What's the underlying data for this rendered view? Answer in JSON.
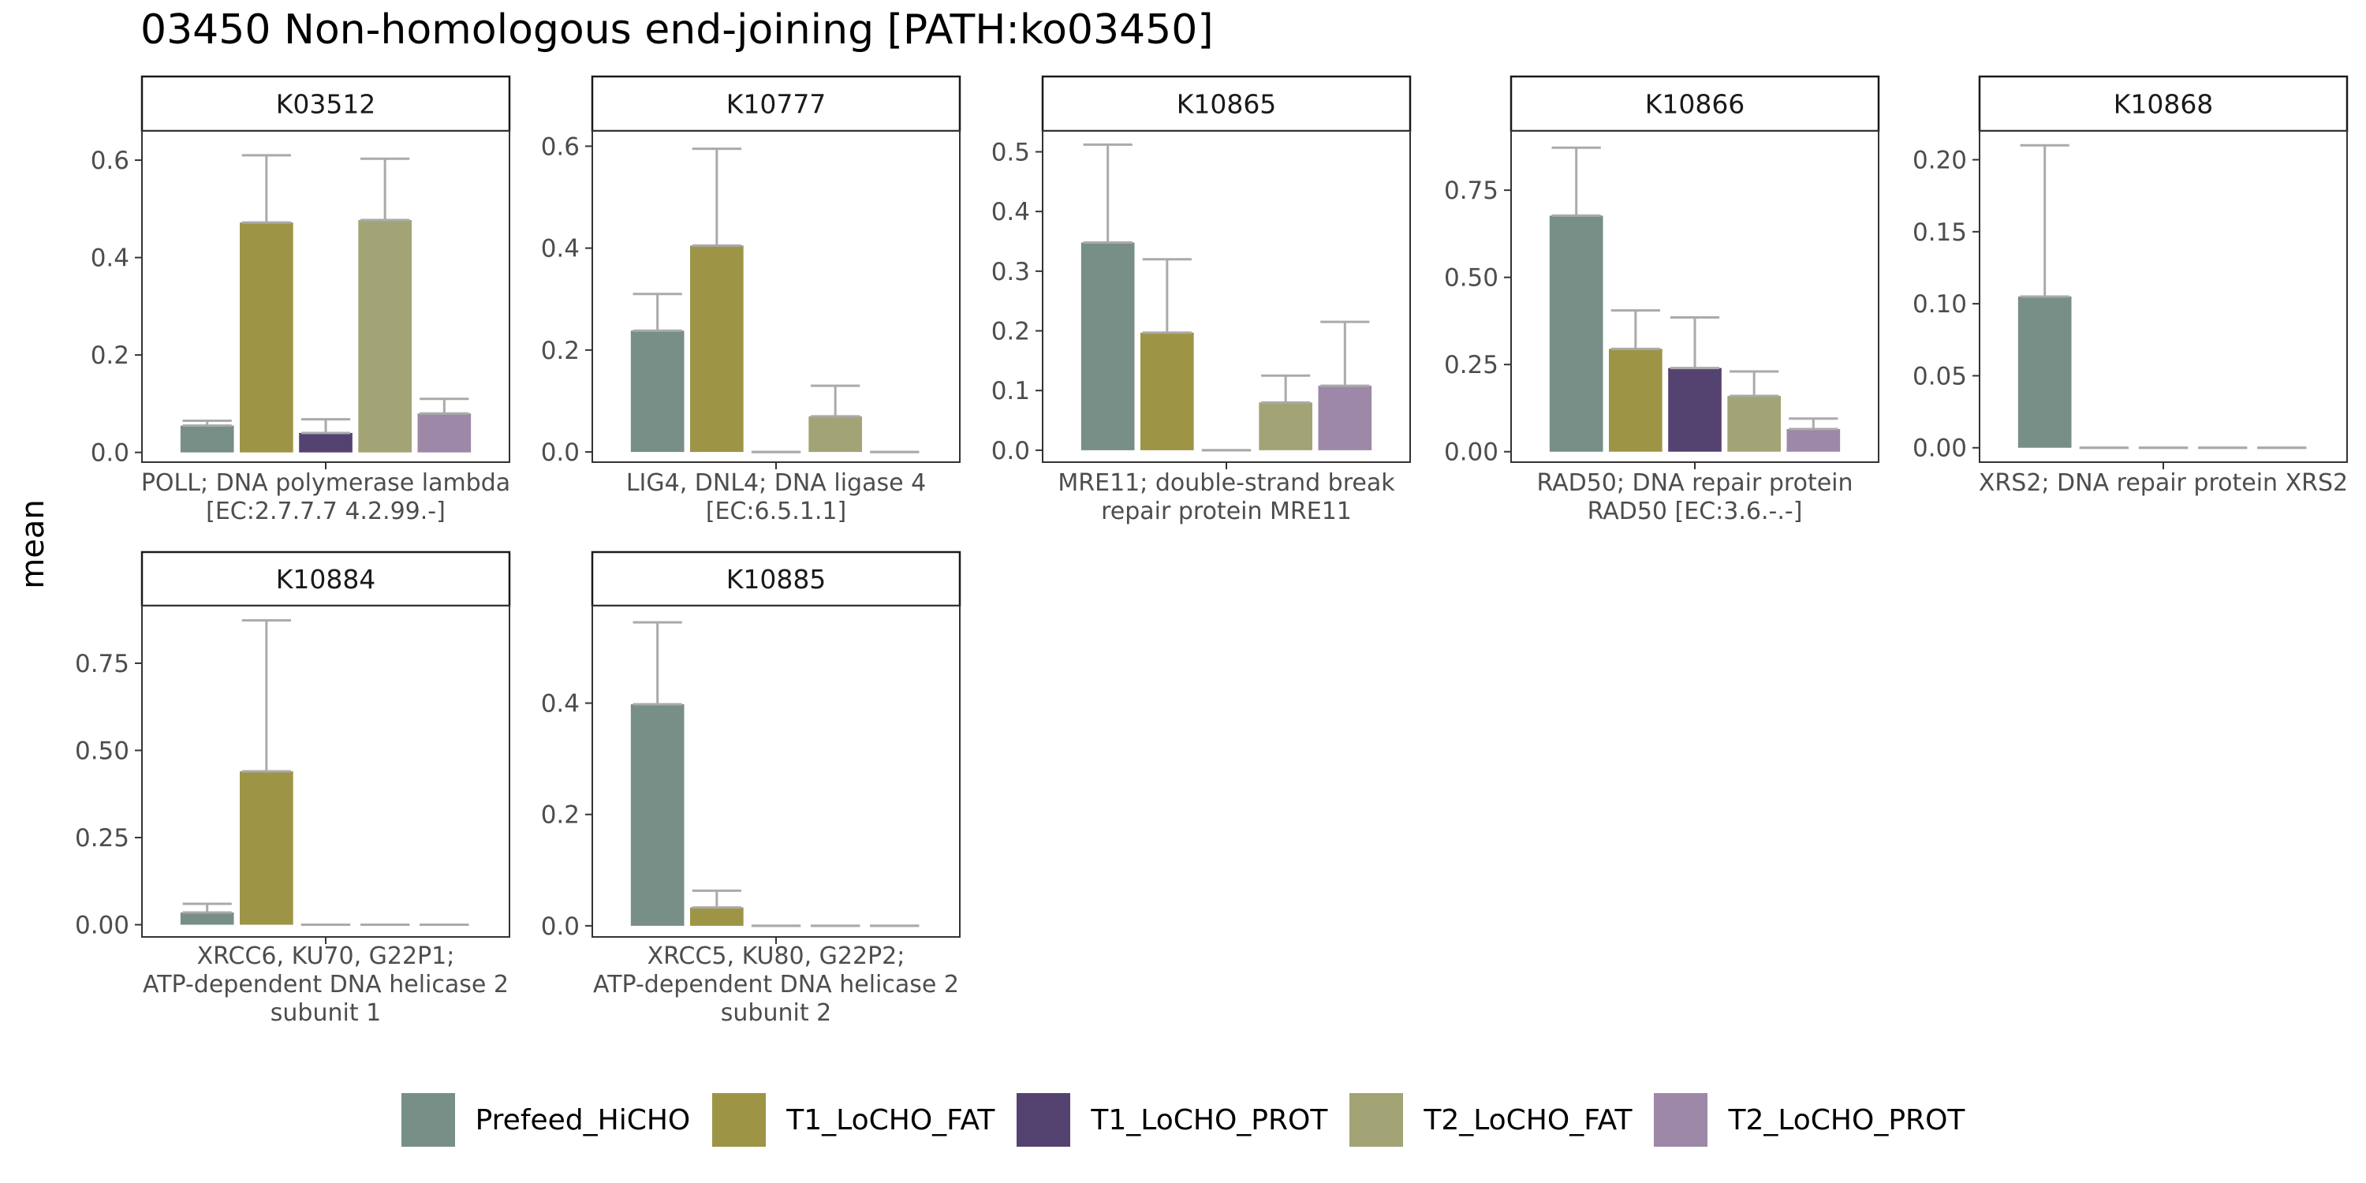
{
  "chart_data": {
    "type": "bar",
    "title": "03450 Non-homologous end-joining [PATH:ko03450]",
    "ylabel": "mean",
    "groups": [
      "Prefeed_HiCHO",
      "T1_LoCHO_FAT",
      "T1_LoCHO_PROT",
      "T2_LoCHO_FAT",
      "T2_LoCHO_PROT"
    ],
    "colors": [
      "#778F86",
      "#9D9446",
      "#544270",
      "#A2A475",
      "#9D88A8"
    ],
    "error_color": "#aaaaaa",
    "grid": false,
    "legend_position": "bottom",
    "panels": [
      {
        "strip": "K03512",
        "xlabel": [
          "POLL; DNA polymerase lambda",
          "[EC:2.7.7.7 4.2.99.-]"
        ],
        "ylim": [
          -0.02,
          0.66
        ],
        "ticks": [
          0.0,
          0.2,
          0.4,
          0.6
        ],
        "tick_labels": [
          "0.0",
          "0.2",
          "0.4",
          "0.6"
        ],
        "values": [
          0.055,
          0.472,
          0.04,
          0.477,
          0.08
        ],
        "errors": [
          0.065,
          0.61,
          0.068,
          0.603,
          0.11
        ]
      },
      {
        "strip": "K10777",
        "xlabel": [
          "LIG4, DNL4; DNA ligase 4",
          "[EC:6.5.1.1]"
        ],
        "ylim": [
          -0.02,
          0.63
        ],
        "ticks": [
          0.0,
          0.2,
          0.4,
          0.6
        ],
        "tick_labels": [
          "0.0",
          "0.2",
          "0.4",
          "0.6"
        ],
        "values": [
          0.238,
          0.405,
          0.0,
          0.07,
          0.0
        ],
        "errors": [
          0.31,
          0.595,
          0.0,
          0.13,
          0.0
        ]
      },
      {
        "strip": "K10865",
        "xlabel": [
          "MRE11; double-strand break",
          "repair protein MRE11"
        ],
        "ylim": [
          -0.02,
          0.535
        ],
        "ticks": [
          0.0,
          0.1,
          0.2,
          0.3,
          0.4,
          0.5
        ],
        "tick_labels": [
          "0.0",
          "0.1",
          "0.2",
          "0.3",
          "0.4",
          "0.5"
        ],
        "values": [
          0.348,
          0.197,
          0.0,
          0.08,
          0.108
        ],
        "errors": [
          0.512,
          0.32,
          0.0,
          0.125,
          0.215
        ]
      },
      {
        "strip": "K10866",
        "xlabel": [
          "RAD50; DNA repair protein",
          "RAD50 [EC:3.6.-.-]"
        ],
        "ylim": [
          -0.03,
          0.92
        ],
        "ticks": [
          0.0,
          0.25,
          0.5,
          0.75
        ],
        "tick_labels": [
          "0.00",
          "0.25",
          "0.50",
          "0.75"
        ],
        "values": [
          0.677,
          0.295,
          0.24,
          0.16,
          0.065
        ],
        "errors": [
          0.872,
          0.405,
          0.385,
          0.23,
          0.095
        ]
      },
      {
        "strip": "K10868",
        "xlabel": [
          "XRS2; DNA repair protein XRS2"
        ],
        "ylim": [
          -0.01,
          0.22
        ],
        "ticks": [
          0.0,
          0.05,
          0.1,
          0.15,
          0.2
        ],
        "tick_labels": [
          "0.00",
          "0.05",
          "0.10",
          "0.15",
          "0.20"
        ],
        "values": [
          0.105,
          0.0,
          0.0,
          0.0,
          0.0
        ],
        "errors": [
          0.21,
          0.0,
          0.0,
          0.0,
          0.0
        ]
      },
      {
        "strip": "K10884",
        "xlabel": [
          "XRCC6, KU70, G22P1;",
          "ATP-dependent DNA helicase 2",
          "subunit 1"
        ],
        "ylim": [
          -0.035,
          0.915
        ],
        "ticks": [
          0.0,
          0.25,
          0.5,
          0.75
        ],
        "tick_labels": [
          "0.00",
          "0.25",
          "0.50",
          "0.75"
        ],
        "values": [
          0.035,
          0.44,
          0.0,
          0.0,
          0.0
        ],
        "errors": [
          0.06,
          0.873,
          0.0,
          0.0,
          0.0
        ]
      },
      {
        "strip": "K10885",
        "xlabel": [
          "XRCC5, KU80, G22P2;",
          "ATP-dependent DNA helicase 2",
          "subunit 2"
        ],
        "ylim": [
          -0.02,
          0.575
        ],
        "ticks": [
          0.0,
          0.2,
          0.4
        ],
        "tick_labels": [
          "0.0",
          "0.2",
          "0.4"
        ],
        "values": [
          0.398,
          0.033,
          0.0,
          0.0,
          0.0
        ],
        "errors": [
          0.545,
          0.063,
          0.0,
          0.0,
          0.0
        ]
      }
    ]
  }
}
